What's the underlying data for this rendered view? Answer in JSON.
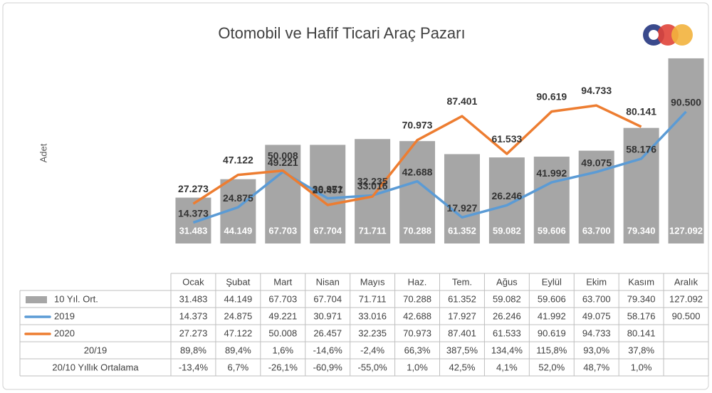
{
  "chart_data": {
    "type": "bar",
    "title": "Otomobil ve Hafif Ticari Araç Pazarı",
    "y_label": "Adet",
    "categories": [
      "Ocak",
      "Şubat",
      "Mart",
      "Nisan",
      "Mayıs",
      "Haz.",
      "Tem.",
      "Ağus",
      "Eylül",
      "Ekim",
      "Kasım",
      "Aralık"
    ],
    "ylim": [
      0,
      130000
    ],
    "series": [
      {
        "name": "10 Yıl. Ort.",
        "type": "bar",
        "color": "#a6a6a6",
        "values": [
          31483,
          44149,
          67703,
          67704,
          71711,
          70288,
          61352,
          59082,
          59606,
          63700,
          79340,
          127092
        ],
        "value_labels": [
          "31.483",
          "44.149",
          "67.703",
          "67.704",
          "71.711",
          "70.288",
          "61.352",
          "59.082",
          "59.606",
          "63.700",
          "79.340",
          "127.092"
        ]
      },
      {
        "name": "2019",
        "type": "line",
        "color": "#5b9bd5",
        "values": [
          14373,
          24875,
          49221,
          30971,
          33016,
          42688,
          17927,
          26246,
          41992,
          49075,
          58176,
          90500
        ],
        "value_labels": [
          "14.373",
          "24.875",
          "49.221",
          "30.971",
          "33.016",
          "42.688",
          "17.927",
          "26.246",
          "41.992",
          "49.075",
          "58.176",
          "90.500"
        ]
      },
      {
        "name": "2020",
        "type": "line",
        "color": "#ed7d31",
        "values": [
          27273,
          47122,
          50008,
          26457,
          32235,
          70973,
          87401,
          61533,
          90619,
          94733,
          80141,
          null
        ],
        "value_labels": [
          "27.273",
          "47.122",
          "50.008",
          "26.457",
          "32.235",
          "70.973",
          "87.401",
          "61.533",
          "90.619",
          "94.733",
          "80.141",
          null
        ]
      }
    ],
    "table_rows": [
      {
        "name": "20/19",
        "values": [
          "89,8%",
          "89,4%",
          "1,6%",
          "-14,6%",
          "-2,4%",
          "66,3%",
          "387,5%",
          "134,4%",
          "115,8%",
          "93,0%",
          "37,8%",
          null
        ]
      },
      {
        "name": "20/10 Yıllık Ortalama",
        "values": [
          "-13,4%",
          "6,7%",
          "-26,1%",
          "-60,9%",
          "-55,0%",
          "1,0%",
          "42,5%",
          "4,1%",
          "52,0%",
          "48,7%",
          "1,0%",
          null
        ]
      }
    ]
  }
}
